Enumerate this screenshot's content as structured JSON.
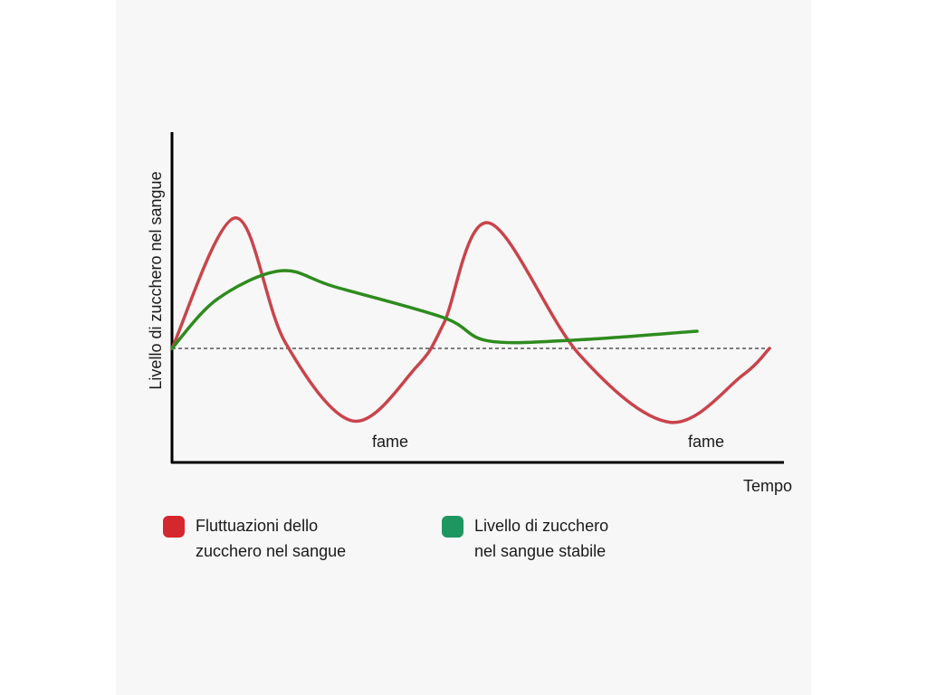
{
  "chart_data": {
    "type": "line",
    "xlabel": "Tempo",
    "ylabel": "Livello di zucchero nel sangue",
    "baseline": 0,
    "series": [
      {
        "name": "Fluttuazioni dello zucchero nel sangue",
        "color": "#c9444b",
        "points": [
          [
            0,
            0
          ],
          [
            0.07,
            1.06
          ],
          [
            0.125,
            0.05
          ],
          [
            0.2,
            -0.59
          ],
          [
            0.27,
            -0.15
          ],
          [
            0.3,
            0.2
          ],
          [
            0.35,
            1.02
          ],
          [
            0.45,
            -0.05
          ],
          [
            0.55,
            -0.6
          ],
          [
            0.63,
            -0.22
          ],
          [
            0.66,
            0
          ]
        ]
      },
      {
        "name": "Livello di zucchero nel sangue stabile",
        "color": "#2e8b1e",
        "points": [
          [
            0,
            0
          ],
          [
            0.05,
            0.4
          ],
          [
            0.12,
            0.63
          ],
          [
            0.18,
            0.5
          ],
          [
            0.3,
            0.25
          ],
          [
            0.35,
            0.06
          ],
          [
            0.45,
            0.07
          ],
          [
            0.58,
            0.14
          ]
        ]
      }
    ],
    "annotations": [
      "fame",
      "fame"
    ],
    "legend_position": "bottom",
    "grid": false
  },
  "legend": {
    "red_label_line1": "Fluttuazioni dello",
    "red_label_line2": "zucchero nel sangue",
    "green_label_line1": "Livello di zucchero",
    "green_label_line2": "nel sangue stabile",
    "red_color": "#d4282e",
    "green_color": "#1e9660"
  }
}
